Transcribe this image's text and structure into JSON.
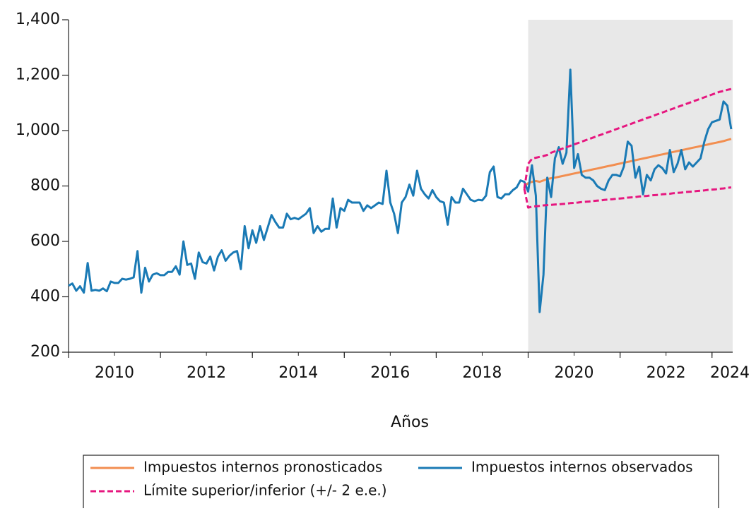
{
  "chart_data": {
    "type": "line",
    "x_label": "Años",
    "xlim": [
      2010,
      2024.45
    ],
    "ylim": [
      200,
      1400
    ],
    "xticks": [
      2010,
      2012,
      2014,
      2016,
      2018,
      2020,
      2022,
      2024
    ],
    "yticks": [
      200,
      400,
      600,
      800,
      {
        "value": 1000,
        "label": "1,000"
      },
      {
        "value": 1200,
        "label": "1,200"
      },
      {
        "value": 1400,
        "label": "1,400"
      }
    ],
    "shaded_region": [
      2020,
      2024.45
    ],
    "series": [
      {
        "name": "Impuestos internos pronosticados",
        "color": "#f28e50",
        "dash": false,
        "x": [
          2019.917,
          2020,
          2020.083,
          2020.167,
          2020.25,
          2020.333,
          2020.417,
          2020.5,
          2020.583,
          2020.667,
          2020.75,
          2020.833,
          2020.917,
          2021,
          2021.083,
          2021.167,
          2021.25,
          2021.333,
          2021.417,
          2021.5,
          2021.583,
          2021.667,
          2021.75,
          2021.833,
          2021.917,
          2022,
          2022.083,
          2022.167,
          2022.25,
          2022.333,
          2022.417,
          2022.5,
          2022.583,
          2022.667,
          2022.75,
          2022.833,
          2022.917,
          2023,
          2023.083,
          2023.167,
          2023.25,
          2023.333,
          2023.417,
          2023.5,
          2023.583,
          2023.667,
          2023.75,
          2023.833,
          2023.917,
          2024,
          2024.083,
          2024.167,
          2024.25,
          2024.333,
          2024.417
        ],
        "values": [
          800,
          810,
          815,
          818,
          815,
          820,
          825,
          828,
          830,
          833,
          836,
          839,
          842,
          845,
          848,
          851,
          854,
          857,
          860,
          863,
          866,
          869,
          872,
          875,
          878,
          881,
          884,
          887,
          890,
          893,
          896,
          899,
          902,
          905,
          908,
          911,
          914,
          917,
          920,
          923,
          926,
          929,
          932,
          935,
          938,
          941,
          944,
          947,
          950,
          953,
          956,
          959,
          962,
          966,
          970
        ]
      },
      {
        "name": "Impuestos internos observados",
        "color": "#1a7ab5",
        "dash": false,
        "x": [
          2010,
          2010.083,
          2010.167,
          2010.25,
          2010.333,
          2010.417,
          2010.5,
          2010.583,
          2010.667,
          2010.75,
          2010.833,
          2010.917,
          2011,
          2011.083,
          2011.167,
          2011.25,
          2011.333,
          2011.417,
          2011.5,
          2011.583,
          2011.667,
          2011.75,
          2011.833,
          2011.917,
          2012,
          2012.083,
          2012.167,
          2012.25,
          2012.333,
          2012.417,
          2012.5,
          2012.583,
          2012.667,
          2012.75,
          2012.833,
          2012.917,
          2013,
          2013.083,
          2013.167,
          2013.25,
          2013.333,
          2013.417,
          2013.5,
          2013.583,
          2013.667,
          2013.75,
          2013.833,
          2013.917,
          2014,
          2014.083,
          2014.167,
          2014.25,
          2014.333,
          2014.417,
          2014.5,
          2014.583,
          2014.667,
          2014.75,
          2014.833,
          2014.917,
          2015,
          2015.083,
          2015.167,
          2015.25,
          2015.333,
          2015.417,
          2015.5,
          2015.583,
          2015.667,
          2015.75,
          2015.833,
          2015.917,
          2016,
          2016.083,
          2016.167,
          2016.25,
          2016.333,
          2016.417,
          2016.5,
          2016.583,
          2016.667,
          2016.75,
          2016.833,
          2016.917,
          2017,
          2017.083,
          2017.167,
          2017.25,
          2017.333,
          2017.417,
          2017.5,
          2017.583,
          2017.667,
          2017.75,
          2017.833,
          2017.917,
          2018,
          2018.083,
          2018.167,
          2018.25,
          2018.333,
          2018.417,
          2018.5,
          2018.583,
          2018.667,
          2018.75,
          2018.833,
          2018.917,
          2019,
          2019.083,
          2019.167,
          2019.25,
          2019.333,
          2019.417,
          2019.5,
          2019.583,
          2019.667,
          2019.75,
          2019.833,
          2019.917,
          2020,
          2020.083,
          2020.167,
          2020.25,
          2020.333,
          2020.417,
          2020.5,
          2020.583,
          2020.667,
          2020.75,
          2020.833,
          2020.917,
          2021,
          2021.083,
          2021.167,
          2021.25,
          2021.333,
          2021.417,
          2021.5,
          2021.583,
          2021.667,
          2021.75,
          2021.833,
          2021.917,
          2022,
          2022.083,
          2022.167,
          2022.25,
          2022.333,
          2022.417,
          2022.5,
          2022.583,
          2022.667,
          2022.75,
          2022.833,
          2022.917,
          2023,
          2023.083,
          2023.167,
          2023.25,
          2023.333,
          2023.417,
          2023.5,
          2023.583,
          2023.667,
          2023.75,
          2023.833,
          2023.917,
          2024,
          2024.083,
          2024.167,
          2024.25,
          2024.333,
          2024.417
        ],
        "values": [
          440,
          448,
          422,
          438,
          415,
          522,
          422,
          425,
          422,
          430,
          420,
          455,
          450,
          450,
          465,
          462,
          465,
          470,
          565,
          415,
          505,
          455,
          480,
          485,
          478,
          478,
          490,
          490,
          510,
          480,
          600,
          515,
          520,
          465,
          560,
          525,
          520,
          545,
          495,
          545,
          568,
          530,
          548,
          560,
          565,
          500,
          655,
          575,
          640,
          595,
          655,
          605,
          650,
          695,
          670,
          650,
          650,
          700,
          680,
          685,
          680,
          690,
          700,
          720,
          630,
          655,
          635,
          645,
          645,
          755,
          650,
          720,
          710,
          750,
          740,
          740,
          740,
          710,
          730,
          720,
          730,
          740,
          735,
          855,
          740,
          700,
          630,
          740,
          760,
          805,
          765,
          855,
          790,
          770,
          755,
          785,
          760,
          745,
          740,
          660,
          760,
          740,
          740,
          790,
          770,
          750,
          745,
          750,
          748,
          765,
          850,
          870,
          760,
          755,
          770,
          770,
          785,
          795,
          820,
          815,
          780,
          875,
          765,
          345,
          480,
          830,
          760,
          900,
          940,
          880,
          920,
          1220,
          865,
          915,
          840,
          830,
          830,
          820,
          800,
          790,
          785,
          820,
          840,
          840,
          835,
          870,
          960,
          945,
          830,
          870,
          770,
          840,
          820,
          860,
          875,
          865,
          845,
          930,
          850,
          880,
          930,
          860,
          885,
          870,
          885,
          900,
          960,
          1005,
          1030,
          1035,
          1040,
          1105,
          1090,
          1005
        ]
      },
      {
        "name": "Límite superior/inferior (+/- 2 e.e.)",
        "color": "#e6177f",
        "dash": true,
        "x": [
          2019.917,
          2020,
          2020.083,
          2020.167,
          2020.25,
          2020.333,
          2020.417,
          2020.5,
          2020.583,
          2020.667,
          2020.75,
          2020.833,
          2020.917,
          2021,
          2021.083,
          2021.167,
          2021.25,
          2021.333,
          2021.417,
          2021.5,
          2021.583,
          2021.667,
          2021.75,
          2021.833,
          2021.917,
          2022,
          2022.083,
          2022.167,
          2022.25,
          2022.333,
          2022.417,
          2022.5,
          2022.583,
          2022.667,
          2022.75,
          2022.833,
          2022.917,
          2023,
          2023.083,
          2023.167,
          2023.25,
          2023.333,
          2023.417,
          2023.5,
          2023.583,
          2023.667,
          2023.75,
          2023.833,
          2023.917,
          2024,
          2024.083,
          2024.167,
          2024.25,
          2024.333,
          2024.417
        ],
        "values": [
          790,
          880,
          898,
          902,
          905,
          908,
          912,
          920,
          925,
          930,
          935,
          940,
          945,
          950,
          955,
          960,
          965,
          970,
          975,
          980,
          985,
          990,
          995,
          1000,
          1005,
          1010,
          1015,
          1020,
          1025,
          1030,
          1035,
          1040,
          1045,
          1050,
          1055,
          1060,
          1065,
          1070,
          1075,
          1080,
          1085,
          1090,
          1095,
          1100,
          1105,
          1110,
          1115,
          1120,
          1125,
          1130,
          1135,
          1140,
          1143,
          1147,
          1150
        ]
      },
      {
        "color": "#e6177f",
        "dash": true,
        "x": [
          2019.917,
          2020,
          2020.083,
          2020.167,
          2020.25,
          2020.333,
          2020.417,
          2020.5,
          2020.583,
          2020.667,
          2020.75,
          2020.833,
          2020.917,
          2021,
          2021.083,
          2021.167,
          2021.25,
          2021.333,
          2021.417,
          2021.5,
          2021.583,
          2021.667,
          2021.75,
          2021.833,
          2021.917,
          2022,
          2022.083,
          2022.167,
          2022.25,
          2022.333,
          2022.417,
          2022.5,
          2022.583,
          2022.667,
          2022.75,
          2022.833,
          2022.917,
          2023,
          2023.083,
          2023.167,
          2023.25,
          2023.333,
          2023.417,
          2023.5,
          2023.583,
          2023.667,
          2023.75,
          2023.833,
          2023.917,
          2024,
          2024.083,
          2024.167,
          2024.25,
          2024.333,
          2024.417
        ],
        "values": [
          790,
          722,
          725,
          727,
          728,
          730,
          731,
          732,
          733,
          734,
          735,
          736,
          738,
          739,
          740,
          742,
          743,
          744,
          746,
          747,
          748,
          750,
          751,
          752,
          754,
          755,
          756,
          758,
          759,
          760,
          762,
          763,
          764,
          766,
          767,
          768,
          770,
          771,
          772,
          774,
          775,
          776,
          778,
          779,
          780,
          782,
          783,
          784,
          786,
          787,
          788,
          790,
          791,
          793,
          795
        ]
      }
    ]
  }
}
